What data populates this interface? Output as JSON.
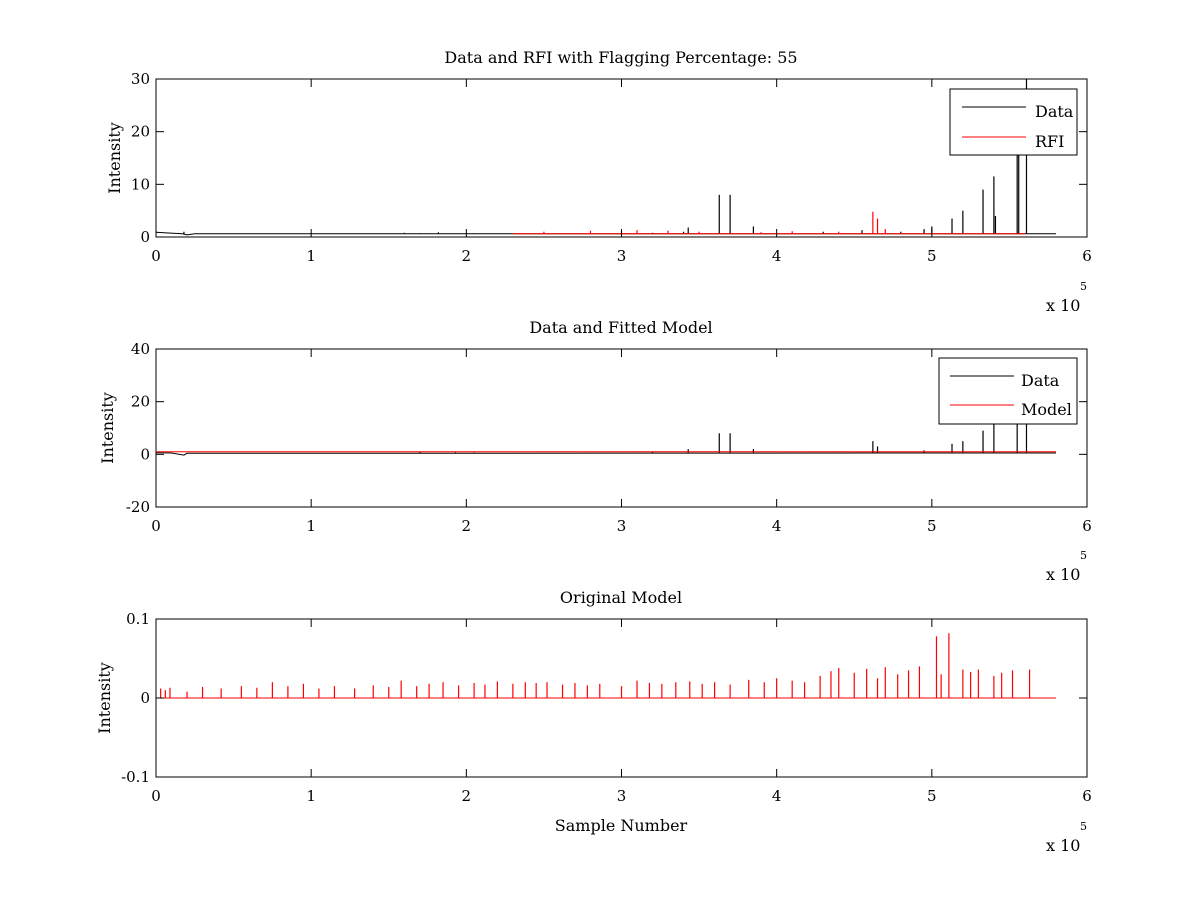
{
  "colors": {
    "data": "#000000",
    "rfi": "#ff0000",
    "model": "#ff0000",
    "axes": "#000000",
    "background": "#ffffff"
  },
  "chart_data": [
    {
      "type": "line",
      "title": "Data and RFI with Flagging Percentage: 55",
      "xlabel": "",
      "ylabel": "Intensity",
      "xlim": [
        0,
        600000
      ],
      "ylim": [
        0,
        30
      ],
      "xtick_labels": [
        "0",
        "1",
        "2",
        "3",
        "4",
        "5",
        "6"
      ],
      "ytick_labels": [
        "0",
        "10",
        "20",
        "30"
      ],
      "ytick_values": [
        0,
        10,
        20,
        30
      ],
      "x_exponent": {
        "base": "x 10",
        "power": "5"
      },
      "legend": {
        "position": "top-right",
        "entries": [
          "Data",
          "RFI"
        ]
      },
      "series": [
        {
          "name": "Data",
          "color": "#000000",
          "baseline": [
            [
              0,
              0.9
            ],
            [
              5000,
              0.8
            ],
            [
              17000,
              0.6
            ],
            [
              20000,
              0.4
            ],
            [
              25000,
              0.6
            ],
            [
              580000,
              0.6
            ]
          ],
          "spikes": [
            [
              0,
              1.2
            ],
            [
              18000,
              1.0
            ],
            [
              120000,
              0.6
            ],
            [
              145000,
              0.6
            ],
            [
              160000,
              0.8
            ],
            [
              170000,
              0.7
            ],
            [
              182000,
              0.9
            ],
            [
              192000,
              0.6
            ],
            [
              205000,
              0.7
            ],
            [
              320000,
              0.8
            ],
            [
              340000,
              1.0
            ],
            [
              343000,
              1.8
            ],
            [
              363000,
              8.0
            ],
            [
              370000,
              8.0
            ],
            [
              385000,
              2.0
            ],
            [
              430000,
              1.0
            ],
            [
              455000,
              1.3
            ],
            [
              480000,
              1.0
            ],
            [
              495000,
              1.5
            ],
            [
              500000,
              2.0
            ],
            [
              513000,
              3.5
            ],
            [
              520000,
              5.0
            ],
            [
              533000,
              9.0
            ],
            [
              540000,
              11.5
            ],
            [
              541000,
              4.0
            ],
            [
              555000,
              16.5
            ],
            [
              556000,
              20.0
            ],
            [
              561000,
              30.0
            ]
          ]
        },
        {
          "name": "RFI",
          "color": "#ff0000",
          "baseline": [
            [
              230000,
              0.6
            ],
            [
              560000,
              0.6
            ]
          ],
          "spikes": [
            [
              250000,
              1.0
            ],
            [
              280000,
              1.2
            ],
            [
              300000,
              1.1
            ],
            [
              310000,
              1.3
            ],
            [
              330000,
              1.2
            ],
            [
              350000,
              1.0
            ],
            [
              390000,
              0.9
            ],
            [
              410000,
              1.1
            ],
            [
              440000,
              1.0
            ],
            [
              462000,
              4.8
            ],
            [
              465000,
              3.5
            ],
            [
              470000,
              1.5
            ]
          ]
        }
      ]
    },
    {
      "type": "line",
      "title": "Data and Fitted Model",
      "xlabel": "",
      "ylabel": "Intensity",
      "xlim": [
        0,
        600000
      ],
      "ylim": [
        -20,
        40
      ],
      "xtick_labels": [
        "0",
        "1",
        "2",
        "3",
        "4",
        "5",
        "6"
      ],
      "ytick_labels": [
        "-20",
        "0",
        "20",
        "40"
      ],
      "ytick_values": [
        -20,
        0,
        20,
        40
      ],
      "x_exponent": {
        "base": "x 10",
        "power": "5"
      },
      "legend": {
        "position": "top-right",
        "entries": [
          "Data",
          "Model"
        ]
      },
      "series": [
        {
          "name": "Data",
          "color": "#000000",
          "baseline": [
            [
              0,
              0.6
            ],
            [
              10000,
              0.5
            ],
            [
              18000,
              -0.3
            ],
            [
              20000,
              0.4
            ],
            [
              580000,
              0.5
            ]
          ],
          "spikes": [
            [
              170000,
              0.9
            ],
            [
              193000,
              0.8
            ],
            [
              205000,
              0.7
            ],
            [
              320000,
              0.9
            ],
            [
              343000,
              2.0
            ],
            [
              363000,
              8.0
            ],
            [
              370000,
              8.0
            ],
            [
              385000,
              2.0
            ],
            [
              462000,
              5.0
            ],
            [
              465000,
              3.0
            ],
            [
              495000,
              1.5
            ],
            [
              513000,
              4.0
            ],
            [
              520000,
              5.0
            ],
            [
              533000,
              9.0
            ],
            [
              540000,
              12.0
            ],
            [
              555000,
              18.0
            ],
            [
              561000,
              35.0
            ]
          ]
        },
        {
          "name": "Model",
          "color": "#ff0000",
          "baseline": [
            [
              0,
              1.0
            ],
            [
              580000,
              1.0
            ]
          ],
          "spikes": []
        }
      ]
    },
    {
      "type": "line",
      "title": "Original Model",
      "xlabel": "Sample Number",
      "ylabel": "Intensity",
      "xlim": [
        0,
        600000
      ],
      "ylim": [
        -0.1,
        0.1
      ],
      "xtick_labels": [
        "0",
        "1",
        "2",
        "3",
        "4",
        "5",
        "6"
      ],
      "ytick_labels": [
        "-0.1",
        "0",
        "0.1"
      ],
      "ytick_values": [
        -0.1,
        0,
        0.1
      ],
      "x_exponent": {
        "base": "x 10",
        "power": "5"
      },
      "series": [
        {
          "color": "#ff0000",
          "baseline": [
            [
              0,
              0
            ],
            [
              580000,
              0
            ]
          ],
          "spikes": [
            [
              3000,
              0.012
            ],
            [
              6000,
              0.01
            ],
            [
              9000,
              0.013
            ],
            [
              20000,
              0.008
            ],
            [
              30000,
              0.014
            ],
            [
              42000,
              0.012
            ],
            [
              55000,
              0.015
            ],
            [
              65000,
              0.013
            ],
            [
              75000,
              0.02
            ],
            [
              85000,
              0.015
            ],
            [
              95000,
              0.018
            ],
            [
              105000,
              0.012
            ],
            [
              115000,
              0.015
            ],
            [
              128000,
              0.012
            ],
            [
              140000,
              0.016
            ],
            [
              150000,
              0.014
            ],
            [
              158000,
              0.022
            ],
            [
              168000,
              0.015
            ],
            [
              176000,
              0.018
            ],
            [
              185000,
              0.02
            ],
            [
              195000,
              0.016
            ],
            [
              205000,
              0.019
            ],
            [
              212000,
              0.017
            ],
            [
              220000,
              0.021
            ],
            [
              230000,
              0.018
            ],
            [
              238000,
              0.02
            ],
            [
              245000,
              0.019
            ],
            [
              252000,
              0.02
            ],
            [
              262000,
              0.017
            ],
            [
              270000,
              0.019
            ],
            [
              278000,
              0.016
            ],
            [
              286000,
              0.018
            ],
            [
              300000,
              0.015
            ],
            [
              310000,
              0.022
            ],
            [
              318000,
              0.019
            ],
            [
              326000,
              0.018
            ],
            [
              335000,
              0.02
            ],
            [
              344000,
              0.021
            ],
            [
              352000,
              0.018
            ],
            [
              360000,
              0.02
            ],
            [
              370000,
              0.017
            ],
            [
              382000,
              0.023
            ],
            [
              392000,
              0.02
            ],
            [
              400000,
              0.025
            ],
            [
              410000,
              0.022
            ],
            [
              418000,
              0.02
            ],
            [
              428000,
              0.028
            ],
            [
              435000,
              0.034
            ],
            [
              440000,
              0.038
            ],
            [
              450000,
              0.032
            ],
            [
              458000,
              0.037
            ],
            [
              465000,
              0.025
            ],
            [
              470000,
              0.039
            ],
            [
              478000,
              0.03
            ],
            [
              485000,
              0.035
            ],
            [
              492000,
              0.04
            ],
            [
              503000,
              0.078
            ],
            [
              506000,
              0.03
            ],
            [
              511000,
              0.082
            ],
            [
              520000,
              0.036
            ],
            [
              525000,
              0.033
            ],
            [
              530000,
              0.036
            ],
            [
              540000,
              0.028
            ],
            [
              545000,
              0.032
            ],
            [
              552000,
              0.035
            ],
            [
              563000,
              0.036
            ]
          ]
        }
      ]
    }
  ]
}
